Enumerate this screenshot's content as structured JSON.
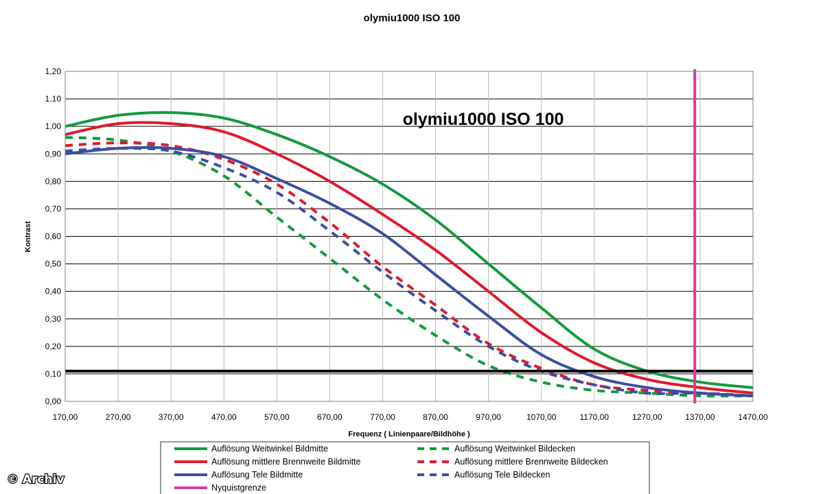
{
  "watermark": "© Archiv",
  "chart_data": {
    "type": "line",
    "title": "olymiu1000 ISO 100",
    "inner_title": "olymiu1000 ISO 100",
    "xlabel": "Frequenz ( Linienpaare/Bildhöhe )",
    "ylabel": "Kontrast",
    "xlim": [
      170,
      1470
    ],
    "ylim": [
      0,
      1.2
    ],
    "x_ticks": [
      "170,00",
      "270,00",
      "370,00",
      "470,00",
      "570,00",
      "670,00",
      "770,00",
      "870,00",
      "970,00",
      "1070,00",
      "1170,00",
      "1270,00",
      "1370,00",
      "1470,00"
    ],
    "y_ticks": [
      "0,00",
      "0,10",
      "0,20",
      "0,30",
      "0,40",
      "0,50",
      "0,60",
      "0,70",
      "0,80",
      "0,90",
      "1,00",
      "1,10",
      "1,20"
    ],
    "grid": true,
    "legend_position": "bottom",
    "x": [
      170,
      270,
      370,
      470,
      570,
      670,
      770,
      870,
      970,
      1070,
      1170,
      1270,
      1370,
      1470
    ],
    "series": [
      {
        "name": "Auflösung Weitwinkel Bildmitte",
        "color": "#119a3c",
        "dash": false,
        "values": [
          1.0,
          1.04,
          1.05,
          1.03,
          0.97,
          0.89,
          0.79,
          0.66,
          0.5,
          0.34,
          0.19,
          0.11,
          0.07,
          0.05
        ]
      },
      {
        "name": "Auflösung Weitwinkel Bildecken",
        "color": "#119a3c",
        "dash": true,
        "values": [
          0.96,
          0.95,
          0.91,
          0.82,
          0.67,
          0.52,
          0.37,
          0.24,
          0.13,
          0.07,
          0.04,
          0.03,
          0.02,
          0.02
        ]
      },
      {
        "name": "Auflösung mittlere Brennweite Bildmitte",
        "color": "#e0192c",
        "dash": false,
        "values": [
          0.97,
          1.01,
          1.01,
          0.98,
          0.9,
          0.8,
          0.68,
          0.55,
          0.4,
          0.25,
          0.14,
          0.08,
          0.05,
          0.03
        ]
      },
      {
        "name": "Auflösung mittlere Brennweite Bildecken",
        "color": "#e0192c",
        "dash": true,
        "values": [
          0.93,
          0.94,
          0.93,
          0.88,
          0.79,
          0.65,
          0.49,
          0.35,
          0.21,
          0.12,
          0.06,
          0.04,
          0.03,
          0.02
        ]
      },
      {
        "name": "Auflösung Tele Bildmitte",
        "color": "#3a4ea3",
        "dash": false,
        "values": [
          0.9,
          0.92,
          0.92,
          0.89,
          0.81,
          0.72,
          0.61,
          0.46,
          0.31,
          0.17,
          0.09,
          0.05,
          0.03,
          0.02
        ]
      },
      {
        "name": "Auflösung Tele Bildecken",
        "color": "#3a4ea3",
        "dash": true,
        "values": [
          0.91,
          0.92,
          0.91,
          0.85,
          0.76,
          0.62,
          0.47,
          0.33,
          0.2,
          0.11,
          0.06,
          0.03,
          0.03,
          0.02
        ]
      }
    ],
    "threshold": {
      "value": 0.11,
      "color": "#000000"
    },
    "nyquist": {
      "name": "Nyquistgrenze",
      "x": 1360,
      "color": "#d63aa0"
    }
  }
}
